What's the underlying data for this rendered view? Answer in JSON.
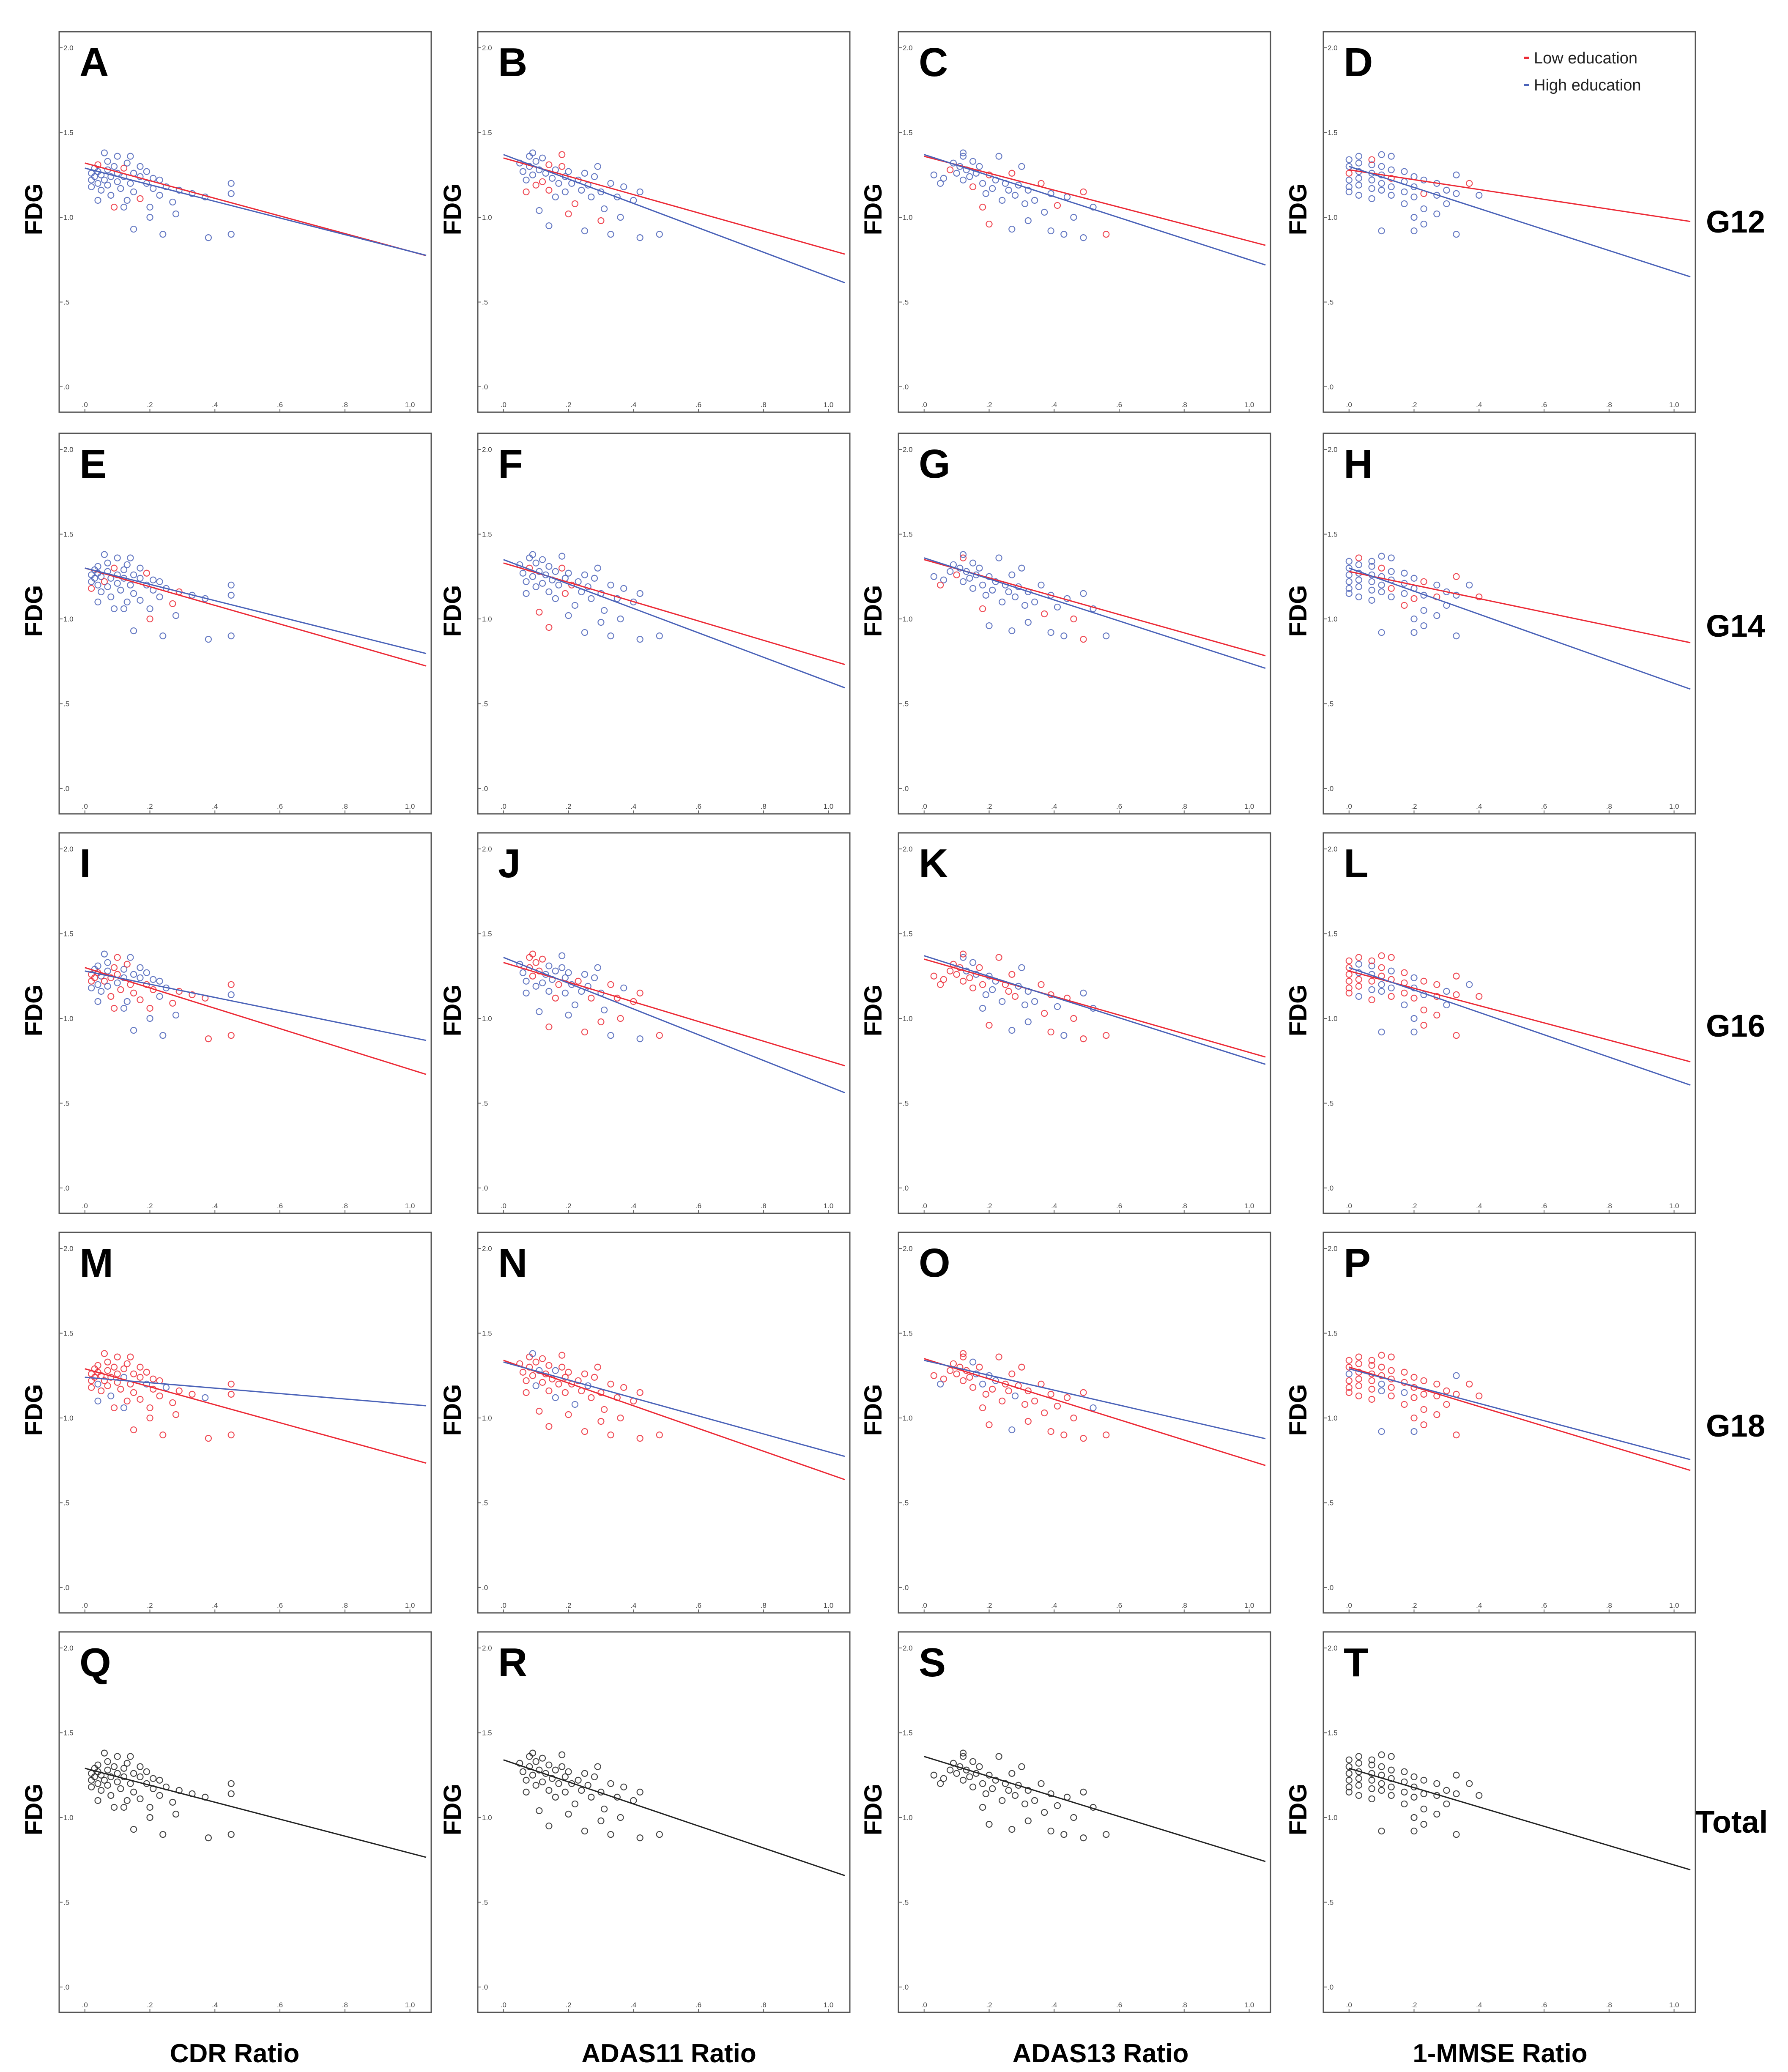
{
  "figure": {
    "y_axis_label": "FDG",
    "series": [
      {
        "key": "low",
        "name": "Low education",
        "color": "#ec2a36"
      },
      {
        "key": "high",
        "name": "High education",
        "color": "#4a62b8"
      },
      {
        "key": "total",
        "name": "Total",
        "color": "#222222"
      }
    ],
    "x_tick_labels": [
      ".0",
      ".2",
      ".4",
      ".6",
      ".8",
      "1.0"
    ],
    "y_tick_labels": [
      ".0",
      ".5",
      "1.0",
      "1.5",
      "2.0"
    ],
    "row_labels": [
      "G12",
      "G14",
      "G16",
      "G18",
      "Total"
    ],
    "column_labels": [
      "CDR Ratio",
      "ADAS11 Ratio",
      "ADAS13 Ratio",
      "1-MMSE Ratio"
    ]
  },
  "chart_data": {
    "type": "scatter",
    "xlim": [
      -0.04,
      1.05
    ],
    "ylim": [
      -0.05,
      2.05
    ],
    "ylabel": "FDG",
    "legend": "top-right of panel D",
    "panels": [
      {
        "letter": "A",
        "row": 0,
        "col": 0,
        "xlabel": "CDR Ratio",
        "lines": [
          {
            "series": "low",
            "intercept": 1.32,
            "slope": -0.52
          },
          {
            "series": "high",
            "intercept": 1.29,
            "slope": -0.49
          }
        ],
        "dot_color": "high"
      },
      {
        "letter": "B",
        "row": 0,
        "col": 1,
        "xlabel": "ADAS11 Ratio",
        "lines": [
          {
            "series": "low",
            "intercept": 1.35,
            "slope": -0.54
          },
          {
            "series": "high",
            "intercept": 1.37,
            "slope": -0.72
          }
        ],
        "dot_color": "high"
      },
      {
        "letter": "C",
        "row": 0,
        "col": 2,
        "xlabel": "ADAS13 Ratio",
        "lines": [
          {
            "series": "low",
            "intercept": 1.36,
            "slope": -0.5
          },
          {
            "series": "high",
            "intercept": 1.37,
            "slope": -0.62
          }
        ],
        "dot_color": "high"
      },
      {
        "letter": "D",
        "row": 0,
        "col": 3,
        "xlabel": "1-MMSE Ratio",
        "lines": [
          {
            "series": "low",
            "intercept": 1.28,
            "slope": -0.29
          },
          {
            "series": "high",
            "intercept": 1.3,
            "slope": -0.62
          }
        ],
        "dot_color": "high"
      },
      {
        "letter": "E",
        "row": 1,
        "col": 0,
        "xlabel": "CDR Ratio",
        "lines": [
          {
            "series": "low",
            "intercept": 1.3,
            "slope": -0.55
          },
          {
            "series": "high",
            "intercept": 1.3,
            "slope": -0.48
          }
        ],
        "dot_color": "high"
      },
      {
        "letter": "F",
        "row": 1,
        "col": 1,
        "xlabel": "ADAS11 Ratio",
        "lines": [
          {
            "series": "low",
            "intercept": 1.33,
            "slope": -0.57
          },
          {
            "series": "high",
            "intercept": 1.35,
            "slope": -0.72
          }
        ],
        "dot_color": "high"
      },
      {
        "letter": "G",
        "row": 1,
        "col": 2,
        "xlabel": "ADAS13 Ratio",
        "lines": [
          {
            "series": "low",
            "intercept": 1.35,
            "slope": -0.54
          },
          {
            "series": "high",
            "intercept": 1.36,
            "slope": -0.62
          }
        ],
        "dot_color": "high"
      },
      {
        "letter": "H",
        "row": 1,
        "col": 3,
        "xlabel": "1-MMSE Ratio",
        "lines": [
          {
            "series": "low",
            "intercept": 1.28,
            "slope": -0.4
          },
          {
            "series": "high",
            "intercept": 1.3,
            "slope": -0.68
          }
        ],
        "dot_color": "high"
      },
      {
        "letter": "I",
        "row": 2,
        "col": 0,
        "xlabel": "CDR Ratio",
        "lines": [
          {
            "series": "low",
            "intercept": 1.3,
            "slope": -0.6
          },
          {
            "series": "high",
            "intercept": 1.28,
            "slope": -0.39
          }
        ],
        "dot_color": "mixed"
      },
      {
        "letter": "J",
        "row": 2,
        "col": 1,
        "xlabel": "ADAS11 Ratio",
        "lines": [
          {
            "series": "low",
            "intercept": 1.33,
            "slope": -0.58
          },
          {
            "series": "high",
            "intercept": 1.36,
            "slope": -0.76
          }
        ],
        "dot_color": "mixed"
      },
      {
        "letter": "K",
        "row": 2,
        "col": 2,
        "xlabel": "ADAS13 Ratio",
        "lines": [
          {
            "series": "low",
            "intercept": 1.35,
            "slope": -0.55
          },
          {
            "series": "high",
            "intercept": 1.37,
            "slope": -0.61
          }
        ],
        "dot_color": "mixed"
      },
      {
        "letter": "L",
        "row": 2,
        "col": 3,
        "xlabel": "1-MMSE Ratio",
        "lines": [
          {
            "series": "low",
            "intercept": 1.28,
            "slope": -0.51
          },
          {
            "series": "high",
            "intercept": 1.3,
            "slope": -0.66
          }
        ],
        "dot_color": "mixed"
      },
      {
        "letter": "M",
        "row": 3,
        "col": 0,
        "xlabel": "CDR Ratio",
        "lines": [
          {
            "series": "low",
            "intercept": 1.29,
            "slope": -0.53
          },
          {
            "series": "high",
            "intercept": 1.24,
            "slope": -0.16
          }
        ],
        "dot_color": "low"
      },
      {
        "letter": "N",
        "row": 3,
        "col": 1,
        "xlabel": "ADAS11 Ratio",
        "lines": [
          {
            "series": "low",
            "intercept": 1.34,
            "slope": -0.67
          },
          {
            "series": "high",
            "intercept": 1.33,
            "slope": -0.53
          }
        ],
        "dot_color": "low"
      },
      {
        "letter": "O",
        "row": 3,
        "col": 2,
        "xlabel": "ADAS13 Ratio",
        "lines": [
          {
            "series": "low",
            "intercept": 1.35,
            "slope": -0.6
          },
          {
            "series": "high",
            "intercept": 1.34,
            "slope": -0.44
          }
        ],
        "dot_color": "low"
      },
      {
        "letter": "P",
        "row": 3,
        "col": 3,
        "xlabel": "1-MMSE Ratio",
        "lines": [
          {
            "series": "low",
            "intercept": 1.3,
            "slope": -0.58
          },
          {
            "series": "high",
            "intercept": 1.29,
            "slope": -0.51
          }
        ],
        "dot_color": "low"
      },
      {
        "letter": "Q",
        "row": 4,
        "col": 0,
        "xlabel": "CDR Ratio",
        "lines": [
          {
            "series": "total",
            "intercept": 1.29,
            "slope": -0.5
          }
        ],
        "dot_color": "total"
      },
      {
        "letter": "R",
        "row": 4,
        "col": 1,
        "xlabel": "ADAS11 Ratio",
        "lines": [
          {
            "series": "total",
            "intercept": 1.34,
            "slope": -0.65
          }
        ],
        "dot_color": "total"
      },
      {
        "letter": "S",
        "row": 4,
        "col": 2,
        "xlabel": "ADAS13 Ratio",
        "lines": [
          {
            "series": "total",
            "intercept": 1.36,
            "slope": -0.59
          }
        ],
        "dot_color": "total"
      },
      {
        "letter": "T",
        "row": 4,
        "col": 3,
        "xlabel": "1-MMSE Ratio",
        "lines": [
          {
            "series": "total",
            "intercept": 1.29,
            "slope": -0.57
          }
        ],
        "dot_color": "total"
      }
    ],
    "point_sets": {
      "CDR Ratio": [
        [
          0.02,
          1.22
        ],
        [
          0.02,
          1.26
        ],
        [
          0.02,
          1.18
        ],
        [
          0.03,
          1.29
        ],
        [
          0.03,
          1.24
        ],
        [
          0.04,
          1.2
        ],
        [
          0.04,
          1.27
        ],
        [
          0.04,
          1.31
        ],
        [
          0.05,
          1.16
        ],
        [
          0.05,
          1.25
        ],
        [
          0.06,
          1.22
        ],
        [
          0.07,
          1.33
        ],
        [
          0.07,
          1.28
        ],
        [
          0.07,
          1.19
        ],
        [
          0.08,
          1.24
        ],
        [
          0.08,
          1.13
        ],
        [
          0.09,
          1.3
        ],
        [
          0.1,
          1.26
        ],
        [
          0.1,
          1.21
        ],
        [
          0.1,
          1.36
        ],
        [
          0.11,
          1.17
        ],
        [
          0.12,
          1.29
        ],
        [
          0.12,
          1.24
        ],
        [
          0.13,
          1.1
        ],
        [
          0.13,
          1.32
        ],
        [
          0.14,
          1.2
        ],
        [
          0.15,
          1.26
        ],
        [
          0.15,
          1.15
        ],
        [
          0.17,
          1.24
        ],
        [
          0.17,
          1.3
        ],
        [
          0.17,
          1.11
        ],
        [
          0.19,
          1.2
        ],
        [
          0.19,
          1.27
        ],
        [
          0.2,
          1.06
        ],
        [
          0.21,
          1.17
        ],
        [
          0.21,
          1.23
        ],
        [
          0.23,
          1.22
        ],
        [
          0.23,
          1.13
        ],
        [
          0.25,
          1.18
        ],
        [
          0.27,
          1.09
        ],
        [
          0.29,
          1.16
        ],
        [
          0.33,
          1.14
        ],
        [
          0.37,
          1.12
        ],
        [
          0.04,
          1.1
        ],
        [
          0.12,
          1.06
        ],
        [
          0.15,
          0.93
        ],
        [
          0.24,
          0.9
        ],
        [
          0.28,
          1.02
        ],
        [
          0.38,
          0.88
        ],
        [
          0.45,
          0.9
        ],
        [
          0.45,
          1.2
        ],
        [
          0.45,
          1.14
        ],
        [
          0.09,
          1.06
        ],
        [
          0.2,
          1.0
        ],
        [
          0.06,
          1.38
        ],
        [
          0.14,
          1.36
        ]
      ],
      "ADAS11 Ratio": [
        [
          0.05,
          1.32
        ],
        [
          0.06,
          1.27
        ],
        [
          0.07,
          1.22
        ],
        [
          0.08,
          1.3
        ],
        [
          0.08,
          1.36
        ],
        [
          0.09,
          1.25
        ],
        [
          0.1,
          1.19
        ],
        [
          0.1,
          1.33
        ],
        [
          0.11,
          1.28
        ],
        [
          0.12,
          1.21
        ],
        [
          0.12,
          1.35
        ],
        [
          0.13,
          1.26
        ],
        [
          0.14,
          1.16
        ],
        [
          0.14,
          1.31
        ],
        [
          0.15,
          1.23
        ],
        [
          0.16,
          1.28
        ],
        [
          0.16,
          1.12
        ],
        [
          0.17,
          1.2
        ],
        [
          0.18,
          1.3
        ],
        [
          0.19,
          1.24
        ],
        [
          0.19,
          1.15
        ],
        [
          0.2,
          1.27
        ],
        [
          0.21,
          1.2
        ],
        [
          0.22,
          1.08
        ],
        [
          0.23,
          1.22
        ],
        [
          0.24,
          1.16
        ],
        [
          0.25,
          1.26
        ],
        [
          0.26,
          1.19
        ],
        [
          0.27,
          1.12
        ],
        [
          0.28,
          1.24
        ],
        [
          0.3,
          1.15
        ],
        [
          0.31,
          1.05
        ],
        [
          0.33,
          1.2
        ],
        [
          0.35,
          1.12
        ],
        [
          0.37,
          1.18
        ],
        [
          0.4,
          1.1
        ],
        [
          0.42,
          1.15
        ],
        [
          0.11,
          1.04
        ],
        [
          0.14,
          0.95
        ],
        [
          0.2,
          1.02
        ],
        [
          0.25,
          0.92
        ],
        [
          0.3,
          0.98
        ],
        [
          0.33,
          0.9
        ],
        [
          0.42,
          0.88
        ],
        [
          0.48,
          0.9
        ],
        [
          0.36,
          1.0
        ],
        [
          0.09,
          1.38
        ],
        [
          0.18,
          1.37
        ],
        [
          0.07,
          1.15
        ],
        [
          0.29,
          1.3
        ]
      ],
      "ADAS13 Ratio": [
        [
          0.03,
          1.25
        ],
        [
          0.06,
          1.23
        ],
        [
          0.08,
          1.28
        ],
        [
          0.09,
          1.32
        ],
        [
          0.1,
          1.26
        ],
        [
          0.11,
          1.3
        ],
        [
          0.12,
          1.22
        ],
        [
          0.12,
          1.36
        ],
        [
          0.13,
          1.28
        ],
        [
          0.14,
          1.24
        ],
        [
          0.15,
          1.33
        ],
        [
          0.15,
          1.18
        ],
        [
          0.16,
          1.26
        ],
        [
          0.17,
          1.3
        ],
        [
          0.18,
          1.2
        ],
        [
          0.19,
          1.14
        ],
        [
          0.2,
          1.25
        ],
        [
          0.21,
          1.17
        ],
        [
          0.22,
          1.22
        ],
        [
          0.24,
          1.1
        ],
        [
          0.25,
          1.2
        ],
        [
          0.26,
          1.16
        ],
        [
          0.27,
          1.26
        ],
        [
          0.28,
          1.13
        ],
        [
          0.29,
          1.19
        ],
        [
          0.31,
          1.08
        ],
        [
          0.32,
          1.16
        ],
        [
          0.34,
          1.1
        ],
        [
          0.36,
          1.2
        ],
        [
          0.37,
          1.03
        ],
        [
          0.39,
          1.14
        ],
        [
          0.41,
          1.07
        ],
        [
          0.44,
          1.12
        ],
        [
          0.46,
          1.0
        ],
        [
          0.49,
          1.15
        ],
        [
          0.18,
          1.06
        ],
        [
          0.2,
          0.96
        ],
        [
          0.27,
          0.93
        ],
        [
          0.32,
          0.98
        ],
        [
          0.39,
          0.92
        ],
        [
          0.43,
          0.9
        ],
        [
          0.49,
          0.88
        ],
        [
          0.56,
          0.9
        ],
        [
          0.12,
          1.38
        ],
        [
          0.23,
          1.36
        ],
        [
          0.05,
          1.2
        ],
        [
          0.3,
          1.3
        ],
        [
          0.52,
          1.06
        ]
      ],
      "1-MMSE Ratio": [
        [
          0.0,
          1.3
        ],
        [
          0.0,
          1.26
        ],
        [
          0.0,
          1.22
        ],
        [
          0.0,
          1.18
        ],
        [
          0.0,
          1.34
        ],
        [
          0.0,
          1.15
        ],
        [
          0.03,
          1.32
        ],
        [
          0.03,
          1.27
        ],
        [
          0.03,
          1.23
        ],
        [
          0.03,
          1.19
        ],
        [
          0.03,
          1.36
        ],
        [
          0.03,
          1.13
        ],
        [
          0.07,
          1.31
        ],
        [
          0.07,
          1.26
        ],
        [
          0.07,
          1.22
        ],
        [
          0.07,
          1.17
        ],
        [
          0.07,
          1.34
        ],
        [
          0.07,
          1.11
        ],
        [
          0.1,
          1.3
        ],
        [
          0.1,
          1.25
        ],
        [
          0.1,
          1.2
        ],
        [
          0.1,
          1.16
        ],
        [
          0.1,
          1.37
        ],
        [
          0.1,
          0.92
        ],
        [
          0.13,
          1.28
        ],
        [
          0.13,
          1.23
        ],
        [
          0.13,
          1.18
        ],
        [
          0.13,
          1.13
        ],
        [
          0.17,
          1.27
        ],
        [
          0.17,
          1.21
        ],
        [
          0.17,
          1.15
        ],
        [
          0.17,
          1.08
        ],
        [
          0.2,
          1.24
        ],
        [
          0.2,
          1.18
        ],
        [
          0.2,
          1.12
        ],
        [
          0.2,
          1.0
        ],
        [
          0.2,
          0.92
        ],
        [
          0.23,
          1.22
        ],
        [
          0.23,
          1.14
        ],
        [
          0.23,
          1.05
        ],
        [
          0.23,
          0.96
        ],
        [
          0.27,
          1.2
        ],
        [
          0.27,
          1.13
        ],
        [
          0.27,
          1.02
        ],
        [
          0.3,
          1.16
        ],
        [
          0.3,
          1.08
        ],
        [
          0.33,
          1.25
        ],
        [
          0.33,
          1.14
        ],
        [
          0.33,
          0.9
        ],
        [
          0.4,
          1.13
        ],
        [
          0.37,
          1.2
        ],
        [
          0.13,
          1.36
        ]
      ]
    }
  }
}
